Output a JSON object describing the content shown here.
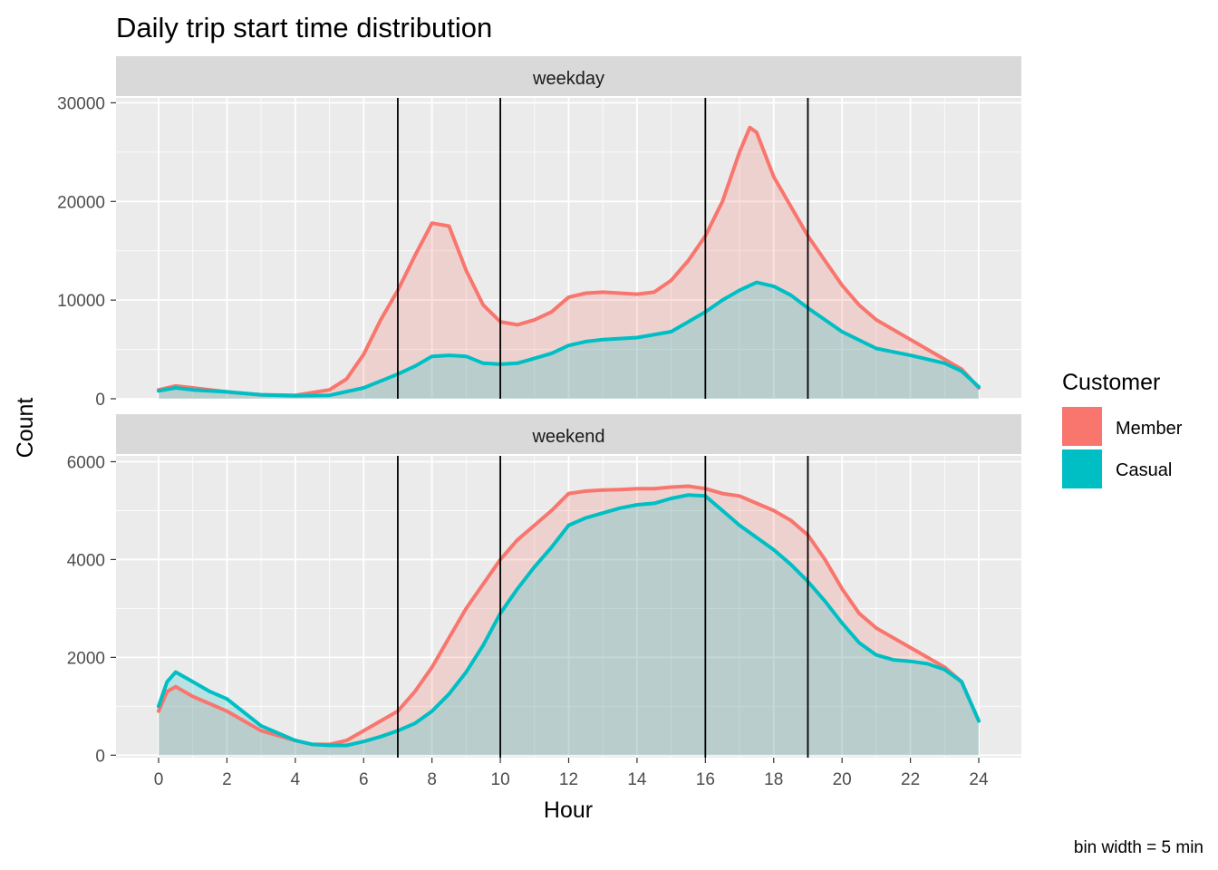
{
  "chart_data": {
    "type": "area",
    "title": "Daily trip start time distribution",
    "xlabel": "Hour",
    "ylabel": "Count",
    "caption": "bin width = 5 min",
    "xlim": [
      0,
      24
    ],
    "x_ticks": [
      0,
      2,
      4,
      6,
      8,
      10,
      12,
      14,
      16,
      18,
      20,
      22,
      24
    ],
    "reference_lines_x": [
      7,
      10,
      16,
      19
    ],
    "legend": {
      "title": "Customer",
      "placement": "right",
      "entries": [
        {
          "label": "Member",
          "color": "#F8766D"
        },
        {
          "label": "Casual",
          "color": "#00BFC4"
        }
      ]
    },
    "facets": [
      {
        "label": "weekday",
        "ylim": [
          0,
          30500
        ],
        "y_ticks": [
          0,
          10000,
          20000,
          30000
        ],
        "series": [
          {
            "name": "Member",
            "x": [
              0,
              0.5,
              1,
              2,
              3,
              4,
              5,
              5.5,
              6,
              6.5,
              7,
              7.5,
              8,
              8.5,
              9,
              9.5,
              10,
              10.5,
              11,
              11.5,
              12,
              12.5,
              13,
              13.5,
              14,
              14.5,
              15,
              15.5,
              16,
              16.5,
              17,
              17.3,
              17.5,
              18,
              18.5,
              19,
              19.5,
              20,
              20.5,
              21,
              22,
              23,
              23.5,
              24
            ],
            "values": [
              900,
              1300,
              1100,
              700,
              400,
              350,
              900,
              2000,
              4500,
              8000,
              11000,
              14500,
              17800,
              17500,
              13000,
              9500,
              7800,
              7500,
              8000,
              8800,
              10300,
              10700,
              10800,
              10700,
              10600,
              10800,
              12000,
              14000,
              16500,
              20000,
              25000,
              27500,
              27000,
              22500,
              19500,
              16500,
              14000,
              11500,
              9500,
              8000,
              6000,
              4000,
              3000,
              1100
            ]
          },
          {
            "name": "Casual",
            "x": [
              0,
              0.5,
              1,
              2,
              3,
              4,
              5,
              6,
              7,
              7.5,
              8,
              8.5,
              9,
              9.5,
              10,
              10.5,
              11,
              11.5,
              12,
              12.5,
              13,
              14,
              15,
              16,
              16.5,
              17,
              17.5,
              18,
              18.5,
              19,
              20,
              21,
              22,
              23,
              23.5,
              24
            ],
            "values": [
              800,
              1100,
              900,
              700,
              400,
              300,
              350,
              1100,
              2500,
              3300,
              4300,
              4400,
              4300,
              3600,
              3500,
              3600,
              4100,
              4600,
              5400,
              5800,
              6000,
              6200,
              6800,
              8800,
              10000,
              11000,
              11800,
              11400,
              10500,
              9200,
              6800,
              5100,
              4400,
              3600,
              2800,
              1200
            ]
          }
        ]
      },
      {
        "label": "weekend",
        "ylim": [
          -50,
          6120
        ],
        "y_ticks": [
          0,
          2000,
          4000,
          6000
        ],
        "series": [
          {
            "name": "Member",
            "x": [
              0,
              0.25,
              0.5,
              1,
              2,
              3,
              4,
              4.5,
              5,
              5.5,
              6,
              6.5,
              7,
              7.5,
              8,
              8.5,
              9,
              9.5,
              10,
              10.5,
              11,
              11.5,
              12,
              12.5,
              13,
              13.5,
              14,
              14.5,
              15,
              15.5,
              16,
              16.5,
              17,
              17.5,
              18,
              18.5,
              19,
              19.5,
              20,
              20.5,
              21,
              21.5,
              22,
              22.5,
              23,
              23.5,
              24
            ],
            "values": [
              900,
              1300,
              1400,
              1200,
              900,
              500,
              300,
              220,
              220,
              300,
              500,
              700,
              900,
              1300,
              1800,
              2400,
              3000,
              3500,
              4000,
              4400,
              4700,
              5000,
              5350,
              5400,
              5420,
              5430,
              5450,
              5450,
              5480,
              5500,
              5450,
              5350,
              5300,
              5150,
              5000,
              4800,
              4500,
              4000,
              3400,
              2900,
              2600,
              2400,
              2200,
              2000,
              1800,
              1500,
              700
            ]
          },
          {
            "name": "Casual",
            "x": [
              0,
              0.25,
              0.5,
              1,
              1.5,
              2,
              3,
              4,
              4.5,
              5,
              5.5,
              6,
              6.5,
              7,
              7.5,
              8,
              8.5,
              9,
              9.5,
              10,
              10.5,
              11,
              11.5,
              12,
              12.5,
              13,
              13.5,
              14,
              14.5,
              15,
              15.5,
              16,
              16.5,
              17,
              17.5,
              18,
              18.5,
              19,
              19.5,
              20,
              20.5,
              21,
              21.5,
              22,
              22.5,
              23,
              23.5,
              24
            ],
            "values": [
              1000,
              1500,
              1700,
              1500,
              1300,
              1150,
              600,
              300,
              220,
              200,
              200,
              280,
              380,
              500,
              650,
              900,
              1250,
              1700,
              2250,
              2900,
              3400,
              3850,
              4250,
              4700,
              4850,
              4950,
              5050,
              5120,
              5150,
              5250,
              5320,
              5300,
              5000,
              4700,
              4450,
              4200,
              3900,
              3550,
              3150,
              2700,
              2300,
              2050,
              1950,
              1920,
              1870,
              1750,
              1500,
              700
            ]
          }
        ]
      }
    ]
  }
}
